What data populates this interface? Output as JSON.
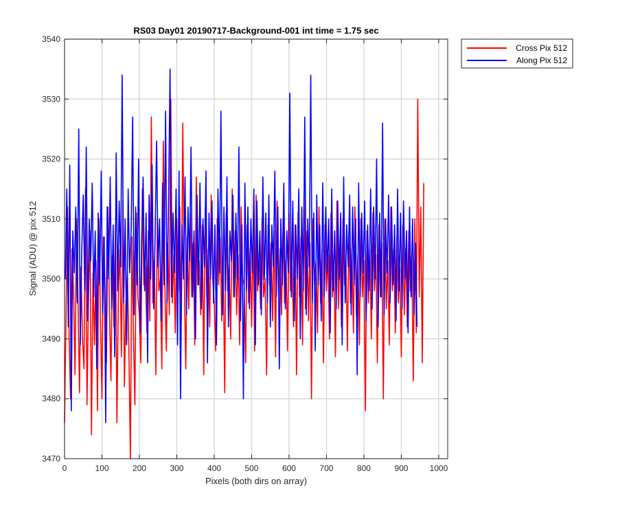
{
  "chart_data": {
    "type": "line",
    "title": "RS03 Day01 20190717-Background-001 int time = 1.75 sec",
    "xlabel": "Pixels (both dirs on array)",
    "ylabel": "Signal (ADU) @ pix 512",
    "xlim": [
      0,
      1024
    ],
    "ylim": [
      3470,
      3540
    ],
    "xticks": [
      0,
      100,
      200,
      300,
      400,
      500,
      600,
      700,
      800,
      900,
      1000
    ],
    "yticks": [
      3470,
      3480,
      3490,
      3500,
      3510,
      3520,
      3530,
      3540
    ],
    "grid": true,
    "legend_placement": "outside-top-right",
    "series": [
      {
        "name": "Cross Pix 512",
        "color": "#ff0000",
        "x_start": 0,
        "x_step": 4,
        "values": [
          3476,
          3494,
          3512,
          3491,
          3480,
          3505,
          3498,
          3484,
          3510,
          3496,
          3481,
          3502,
          3490,
          3485,
          3515,
          3479,
          3497,
          3508,
          3474,
          3501,
          3489,
          3503,
          3478,
          3510,
          3493,
          3480,
          3507,
          3499,
          3486,
          3512,
          3495,
          3483,
          3504,
          3492,
          3509,
          3476,
          3498,
          3505,
          3487,
          3513,
          3482,
          3496,
          3501,
          3488,
          3470,
          3507,
          3491,
          3479,
          3511,
          3497,
          3494,
          3486,
          3515,
          3499,
          3502,
          3491,
          3508,
          3493,
          3527,
          3496,
          3503,
          3484,
          3510,
          3498,
          3500,
          3485,
          3523,
          3499,
          3488,
          3506,
          3494,
          3530,
          3496,
          3504,
          3491,
          3510,
          3498,
          3512,
          3493,
          3526,
          3500,
          3485,
          3507,
          3495,
          3511,
          3497,
          3506,
          3489,
          3517,
          3499,
          3503,
          3494,
          3509,
          3484,
          3512,
          3497,
          3505,
          3492,
          3514,
          3500,
          3496,
          3488,
          3510,
          3499,
          3507,
          3493,
          3504,
          3481,
          3511,
          3498,
          3502,
          3490,
          3515,
          3497,
          3508,
          3494,
          3504,
          3489,
          3512,
          3500,
          3499,
          3486,
          3509,
          3496,
          3505,
          3492,
          3507,
          3488,
          3514,
          3498,
          3503,
          3495,
          3510,
          3497,
          3500,
          3484,
          3509,
          3499,
          3506,
          3493,
          3508,
          3487,
          3513,
          3497,
          3505,
          3494,
          3510,
          3496,
          3503,
          3488,
          3511,
          3498,
          3502,
          3492,
          3509,
          3484,
          3511,
          3497,
          3507,
          3489,
          3514,
          3495,
          3508,
          3493,
          3506,
          3480,
          3510,
          3499,
          3503,
          3491,
          3512,
          3496,
          3505,
          3486,
          3509,
          3498,
          3504,
          3490,
          3511,
          3497,
          3502,
          3487,
          3513,
          3495,
          3506,
          3492,
          3510,
          3499,
          3503,
          3488,
          3508,
          3496,
          3505,
          3491,
          3512,
          3494,
          3504,
          3489,
          3510,
          3497,
          3503,
          3478,
          3508,
          3496,
          3505,
          3490,
          3511,
          3498,
          3504,
          3486,
          3509,
          3497,
          3506,
          3480,
          3510,
          3495,
          3503,
          3489,
          3512,
          3498,
          3505,
          3491,
          3507,
          3496,
          3502,
          3487,
          3509,
          3494,
          3505,
          3492,
          3508,
          3498,
          3504,
          3483,
          3510,
          3491,
          3530,
          3497,
          3512,
          3486,
          3516
        ]
      },
      {
        "name": "Along Pix 512",
        "color": "#0000ff",
        "x_start": 2,
        "x_step": 4,
        "values": [
          3500,
          3515,
          3492,
          3519,
          3478,
          3508,
          3501,
          3512,
          3496,
          3525,
          3489,
          3505,
          3514,
          3498,
          3522,
          3493,
          3510,
          3503,
          3516,
          3497,
          3508,
          3485,
          3511,
          3499,
          3518,
          3494,
          3507,
          3476,
          3512,
          3500,
          3517,
          3495,
          3509,
          3487,
          3521,
          3498,
          3513,
          3502,
          3534,
          3496,
          3510,
          3489,
          3515,
          3501,
          3508,
          3527,
          3494,
          3512,
          3499,
          3520,
          3491,
          3506,
          3517,
          3498,
          3511,
          3486,
          3514,
          3500,
          3519,
          3495,
          3507,
          3523,
          3502,
          3510,
          3493,
          3516,
          3499,
          3528,
          3496,
          3513,
          3535,
          3497,
          3511,
          3501,
          3515,
          3489,
          3518,
          3480,
          3509,
          3500,
          3517,
          3494,
          3512,
          3503,
          3522,
          3497,
          3508,
          3490,
          3514,
          3499,
          3516,
          3495,
          3510,
          3502,
          3518,
          3486,
          3511,
          3500,
          3513,
          3496,
          3509,
          3489,
          3515,
          3501,
          3528,
          3494,
          3512,
          3498,
          3517,
          3492,
          3508,
          3503,
          3514,
          3497,
          3511,
          3500,
          3522,
          3493,
          3509,
          3480,
          3516,
          3498,
          3512,
          3495,
          3510,
          3501,
          3515,
          3489,
          3513,
          3499,
          3508,
          3494,
          3517,
          3500,
          3511,
          3496,
          3514,
          3492,
          3509,
          3502,
          3518,
          3497,
          3512,
          3485,
          3510,
          3499,
          3516,
          3495,
          3508,
          3501,
          3531,
          3497,
          3513,
          3493,
          3509,
          3500,
          3515,
          3490,
          3512,
          3498,
          3527,
          3494,
          3510,
          3502,
          3534,
          3496,
          3511,
          3488,
          3514,
          3499,
          3509,
          3493,
          3516,
          3497,
          3512,
          3501,
          3510,
          3491,
          3515,
          3498,
          3508,
          3495,
          3513,
          3500,
          3511,
          3489,
          3517,
          3496,
          3509,
          3502,
          3514,
          3494,
          3512,
          3499,
          3510,
          3484,
          3516,
          3497,
          3511,
          3501,
          3513,
          3493,
          3509,
          3498,
          3515,
          3495,
          3512,
          3500,
          3520,
          3492,
          3511,
          3497,
          3526,
          3494,
          3510,
          3501,
          3514,
          3496,
          3512,
          3499,
          3509,
          3493,
          3515,
          3498,
          3511,
          3495,
          3513,
          3500,
          3508,
          3491,
          3512,
          3497,
          3510,
          3494,
          3506,
          3492
        ]
      }
    ]
  }
}
